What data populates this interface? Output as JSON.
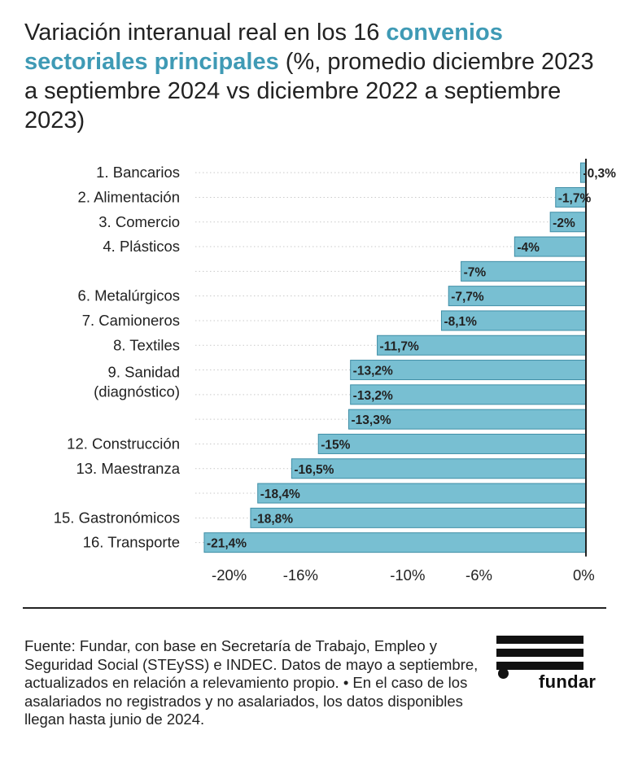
{
  "title": {
    "lead": "Variación interanual real en los 16 ",
    "highlight": "convenios sectoriales principales",
    "rest": " (%, promedio diciembre 2023 a septiembre 2024 vs diciembre 2022 a septiembre 2023)"
  },
  "colors": {
    "bar": "#78bfd2",
    "bar_stroke": "#3f8ea6",
    "highlight_text": "#3f9ab5",
    "text": "#222222",
    "axis": "#222222"
  },
  "chart_data": {
    "type": "bar",
    "orientation": "horizontal",
    "categories": [
      "1. Bancarios",
      "2. Alimentación",
      "3. Comercio",
      "4. Plásticos",
      "",
      "6. Metalúrgicos",
      "7. Camioneros",
      "8. Textiles",
      "",
      "",
      "",
      "12. Construcción",
      "13. Maestranza",
      "",
      "15. Gastronómicos",
      "16. Transporte"
    ],
    "group_labels": [
      {
        "rows": [
          8,
          9
        ],
        "lines": [
          "9. Sanidad",
          "(diagnóstico)"
        ]
      }
    ],
    "values": [
      -0.3,
      -1.7,
      -2,
      -4,
      -7,
      -7.7,
      -8.1,
      -11.7,
      -13.2,
      -13.2,
      -13.3,
      -15,
      -16.5,
      -18.4,
      -18.8,
      -21.4
    ],
    "data_labels": [
      "-0,3%",
      "-1,7%",
      "-2%",
      "-4%",
      "-7%",
      "-7,7%",
      "-8,1%",
      "-11,7%",
      "-13,2%",
      "-13,2%",
      "-13,3%",
      "-15%",
      "-16,5%",
      "-18,4%",
      "-18,8%",
      "-21,4%"
    ],
    "x_ticks": [
      {
        "value": -20,
        "label": "-20%"
      },
      {
        "value": -16,
        "label": "-16%"
      },
      {
        "value": -10,
        "label": "-10%"
      },
      {
        "value": -6,
        "label": "-6%"
      },
      {
        "value": 0,
        "label": "0%"
      }
    ],
    "xlim": [
      -21.9,
      0
    ],
    "grid": "dotted horizontal lines",
    "legend": "none"
  },
  "source": "Fuente: Fundar, con base en Secretaría de Trabajo, Empleo y Seguridad Social (STEySS) e INDEC. Datos de mayo a septiembre, actualizados en relación a relevamiento propio. • En el caso de los asalariados no registrados y no asalariados, los datos disponibles llegan hasta junio de 2024.",
  "logo": {
    "name": "fundar"
  }
}
